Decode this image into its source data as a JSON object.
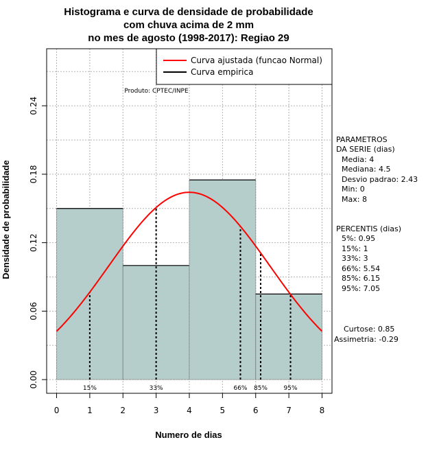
{
  "chart_data": {
    "type": "bar",
    "title_lines": [
      "Histograma e curva de densidade de probabilidade",
      "com chuva acima de 2 mm",
      "no mes de agosto (1998-2017): Regiao 29"
    ],
    "xlabel": "Numero de dias",
    "ylabel": "Densidade de probabilidade",
    "xlim": [
      -0.3,
      8.3
    ],
    "ylim": [
      -0.012,
      0.29
    ],
    "x_ticks": [
      0,
      1,
      2,
      3,
      4,
      5,
      6,
      7,
      8
    ],
    "y_ticks": [
      0.0,
      0.06,
      0.12,
      0.18,
      0.24
    ],
    "y_tick_labels": [
      "0.00",
      "0.06",
      "0.12",
      "0.18",
      "0.24"
    ],
    "grid": true,
    "histogram": [
      {
        "x0": 0,
        "x1": 2,
        "density": 0.15
      },
      {
        "x0": 2,
        "x1": 4,
        "density": 0.1
      },
      {
        "x0": 4,
        "x1": 6,
        "density": 0.175
      },
      {
        "x0": 6,
        "x1": 8,
        "density": 0.075
      }
    ],
    "bar_color": "#b5cdcb",
    "normal_curve": {
      "mean": 4,
      "sd": 2.43,
      "color": "#ff0000",
      "x_range": [
        0,
        8
      ]
    },
    "percentile_lines": [
      {
        "x": 1.0,
        "label": "15%"
      },
      {
        "x": 3.0,
        "label": "33%"
      },
      {
        "x": 5.54,
        "label": "66%"
      },
      {
        "x": 6.15,
        "label": "85%"
      },
      {
        "x": 7.05,
        "label": "95%"
      }
    ],
    "legend": {
      "position": "top-right",
      "entries": [
        {
          "label": "Curva ajustada (funcao Normal)",
          "color": "#ff0000"
        },
        {
          "label": "Curva empirica",
          "color": "#000000"
        }
      ]
    },
    "annotation": "Produto: CPTEC/INPE"
  },
  "side_panel": {
    "params_title": [
      "PARAMETROS",
      "DA SERIE (dias)"
    ],
    "params": [
      "Media: 4",
      "Mediana: 4.5",
      "Desvio padrao: 2.43",
      "Min: 0",
      "Max: 8"
    ],
    "percentis_title": "PERCENTIS (dias)",
    "percentis": [
      "5%: 0.95",
      "15%: 1",
      "33%: 3",
      "66%: 5.54",
      "85%: 6.15",
      "95%: 7.05"
    ],
    "curtose": "Curtose: 0.85",
    "assimetria": "Assimetria: -0.29"
  }
}
